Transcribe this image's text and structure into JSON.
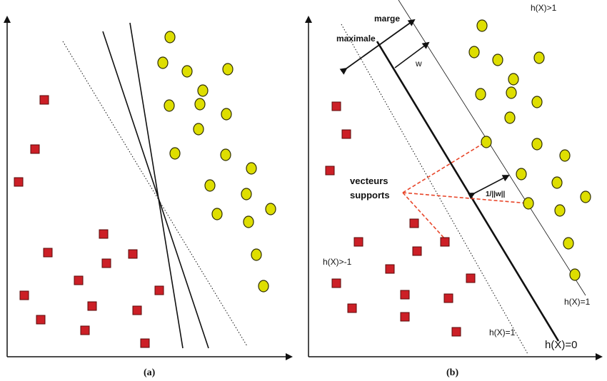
{
  "figure": {
    "colors": {
      "square": "#cc1f26",
      "circle": "#dede00",
      "support_link": "#e8462a",
      "line": "#111111"
    },
    "panel_a": {
      "caption": "(a)",
      "points_class_square": 15,
      "points_class_circle": 22,
      "separators": [
        "dotted",
        "solid",
        "solid"
      ]
    },
    "panel_b": {
      "caption": "(b)",
      "label_marge": "marge",
      "label_maximale": "maximale",
      "label_w": "w",
      "label_inv_norm": "1/||w||",
      "label_vecteurs": "vecteurs",
      "label_supports": "supports",
      "label_h_gt_1": "h(X)>1",
      "label_h_lt_minus1": "h(X)>-1",
      "label_h_eq_1_left": "h(X)=1",
      "label_h_eq_1_right": "h(X)=1",
      "label_h_eq_0": "h(X)=0"
    }
  }
}
